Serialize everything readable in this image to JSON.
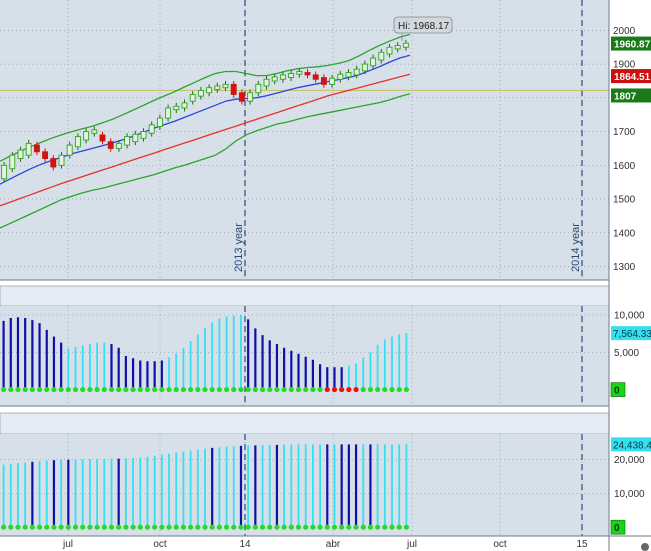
{
  "chart_data": [
    {
      "type": "candlestick",
      "panel": "price",
      "ylim": [
        1260,
        2090
      ],
      "yticks": [
        1300,
        1400,
        1500,
        1600,
        1700,
        1800,
        1900,
        2000
      ],
      "series": [
        {
          "name": "price",
          "kind": "candles",
          "color_up": "#2fa51f",
          "color_down": "#d01414"
        },
        {
          "name": "upper band",
          "kind": "line",
          "color": "#2ba52b",
          "values": [
            1612,
            1628,
            1642,
            1655,
            1668,
            1680,
            1690,
            1700,
            1708,
            1716,
            1726,
            1737,
            1750,
            1764,
            1778,
            1792,
            1805,
            1818,
            1832,
            1846,
            1860,
            1872,
            1878,
            1878,
            1872,
            1866,
            1866,
            1872,
            1880,
            1886,
            1890,
            1892,
            1896,
            1902,
            1910,
            1924,
            1940,
            1955,
            1968,
            1980,
            1988
          ]
        },
        {
          "name": "lower band",
          "kind": "line",
          "color": "#2ba52b",
          "values": [
            1414,
            1428,
            1442,
            1456,
            1470,
            1484,
            1498,
            1508,
            1518,
            1526,
            1532,
            1540,
            1548,
            1556,
            1564,
            1572,
            1582,
            1592,
            1600,
            1610,
            1620,
            1630,
            1648,
            1672,
            1690,
            1702,
            1712,
            1722,
            1728,
            1736,
            1744,
            1750,
            1756,
            1762,
            1768,
            1774,
            1780,
            1786,
            1794,
            1804,
            1812
          ]
        },
        {
          "name": "red ma",
          "kind": "line",
          "color": "#e83030",
          "values": [
            1480,
            1491,
            1502,
            1513,
            1524,
            1535,
            1546,
            1556,
            1566,
            1576,
            1586,
            1596,
            1606,
            1616,
            1626,
            1636,
            1646,
            1656,
            1666,
            1676,
            1686,
            1696,
            1706,
            1716,
            1726,
            1736,
            1746,
            1756,
            1766,
            1776,
            1786,
            1796,
            1806,
            1814,
            1822,
            1830,
            1838,
            1846,
            1854,
            1862,
            1870
          ]
        },
        {
          "name": "blue ma",
          "kind": "line",
          "color": "#2845e0",
          "values": [
            1544,
            1560,
            1575,
            1590,
            1603,
            1614,
            1624,
            1634,
            1642,
            1650,
            1658,
            1667,
            1676,
            1686,
            1698,
            1710,
            1720,
            1730,
            1742,
            1754,
            1766,
            1778,
            1790,
            1796,
            1798,
            1800,
            1806,
            1814,
            1822,
            1830,
            1836,
            1842,
            1848,
            1854,
            1860,
            1868,
            1880,
            1892,
            1906,
            1918,
            1926
          ]
        }
      ],
      "candles": [
        {
          "o": 1560,
          "c": 1600
        },
        {
          "o": 1590,
          "c": 1630
        },
        {
          "o": 1620,
          "c": 1645
        },
        {
          "o": 1630,
          "c": 1665
        },
        {
          "o": 1660,
          "c": 1640
        },
        {
          "o": 1640,
          "c": 1620
        },
        {
          "o": 1620,
          "c": 1595
        },
        {
          "o": 1600,
          "c": 1630
        },
        {
          "o": 1630,
          "c": 1660
        },
        {
          "o": 1655,
          "c": 1685
        },
        {
          "o": 1675,
          "c": 1700
        },
        {
          "o": 1695,
          "c": 1705
        },
        {
          "o": 1690,
          "c": 1672
        },
        {
          "o": 1670,
          "c": 1650
        },
        {
          "o": 1650,
          "c": 1665
        },
        {
          "o": 1660,
          "c": 1685
        },
        {
          "o": 1670,
          "c": 1692
        },
        {
          "o": 1680,
          "c": 1700
        },
        {
          "o": 1695,
          "c": 1720
        },
        {
          "o": 1715,
          "c": 1740
        },
        {
          "o": 1740,
          "c": 1770
        },
        {
          "o": 1765,
          "c": 1775
        },
        {
          "o": 1770,
          "c": 1785
        },
        {
          "o": 1790,
          "c": 1810
        },
        {
          "o": 1805,
          "c": 1822
        },
        {
          "o": 1815,
          "c": 1830
        },
        {
          "o": 1825,
          "c": 1835
        },
        {
          "o": 1830,
          "c": 1840
        },
        {
          "o": 1840,
          "c": 1810
        },
        {
          "o": 1815,
          "c": 1790
        },
        {
          "o": 1790,
          "c": 1815
        },
        {
          "o": 1815,
          "c": 1840
        },
        {
          "o": 1835,
          "c": 1855
        },
        {
          "o": 1850,
          "c": 1862
        },
        {
          "o": 1855,
          "c": 1868
        },
        {
          "o": 1860,
          "c": 1872
        },
        {
          "o": 1870,
          "c": 1878
        },
        {
          "o": 1875,
          "c": 1868
        },
        {
          "o": 1868,
          "c": 1855
        },
        {
          "o": 1860,
          "c": 1840
        },
        {
          "o": 1840,
          "c": 1858
        },
        {
          "o": 1855,
          "c": 1870
        },
        {
          "o": 1862,
          "c": 1875
        },
        {
          "o": 1868,
          "c": 1885
        },
        {
          "o": 1880,
          "c": 1900
        },
        {
          "o": 1895,
          "c": 1918
        },
        {
          "o": 1912,
          "c": 1935
        },
        {
          "o": 1930,
          "c": 1950
        },
        {
          "o": 1945,
          "c": 1955
        },
        {
          "o": 1950,
          "c": 1962
        }
      ],
      "horizontal_line": {
        "value": 1822,
        "color": "#c4c05a"
      },
      "high_marker": {
        "label": "Hi: 1968.17",
        "value": 1968.17
      },
      "price_labels": [
        {
          "text": "1960.87",
          "value": 1960.87,
          "color": "#1a7a1a"
        },
        {
          "text": "1864.51",
          "value": 1864.51,
          "color": "#cc1010"
        },
        {
          "text": "1807",
          "value": 1807,
          "color": "#1a7a1a"
        }
      ],
      "annotations": [
        "2013 year",
        "2014 year"
      ]
    },
    {
      "type": "bar",
      "panel": "indicator-1",
      "ylim": [
        -2200,
        11200
      ],
      "ytick_labels": [
        {
          "value": 10000,
          "text": "10,000"
        },
        {
          "value": 5000,
          "text": "5,000"
        }
      ],
      "current_label": "7,564.33",
      "zero_label": "0",
      "colors": {
        "dark": "#1010a8",
        "light": "#34dff0"
      },
      "values": [
        9200,
        9600,
        9700,
        9600,
        9300,
        8900,
        8000,
        7100,
        6300,
        5500,
        5700,
        5900,
        6100,
        6300,
        6300,
        6100,
        5600,
        4500,
        4200,
        3900,
        3800,
        3800,
        3900,
        4300,
        4800,
        5600,
        6500,
        7400,
        8300,
        9000,
        9500,
        9800,
        9900,
        10000,
        9400,
        8200,
        7300,
        6600,
        6100,
        5600,
        5200,
        4800,
        4400,
        4000,
        3400,
        3000,
        3000,
        3000,
        3200,
        3500,
        4300,
        5000,
        6000,
        6700,
        7100,
        7400,
        7564.33
      ],
      "dark_flags": [
        1,
        1,
        1,
        1,
        1,
        1,
        1,
        1,
        1,
        0,
        0,
        0,
        0,
        0,
        0,
        1,
        1,
        1,
        1,
        1,
        1,
        1,
        1,
        0,
        0,
        0,
        0,
        0,
        0,
        0,
        0,
        0,
        0,
        0,
        1,
        1,
        1,
        1,
        1,
        1,
        1,
        1,
        1,
        1,
        1,
        1,
        1,
        1,
        0,
        0,
        0,
        0,
        0,
        0,
        0,
        0,
        0
      ],
      "dots": {
        "green": "#22dd22",
        "red": "#ee1111",
        "red_from": 45,
        "red_to": 49
      }
    },
    {
      "type": "bar",
      "panel": "indicator-2",
      "ylim": [
        -2600,
        27500
      ],
      "ytick_labels": [
        {
          "value": 20000,
          "text": "20,000"
        },
        {
          "value": 10000,
          "text": "10,000"
        }
      ],
      "current_label": "24,438.4",
      "zero_label": "0",
      "colors": {
        "dark": "#1010a8",
        "light": "#34dff0"
      },
      "values": [
        18500,
        18700,
        18900,
        19100,
        19300,
        19500,
        19700,
        19800,
        19850,
        19900,
        19950,
        20000,
        20050,
        20100,
        20150,
        20200,
        20250,
        20300,
        20450,
        20600,
        20800,
        21100,
        21400,
        21700,
        22000,
        22300,
        22600,
        22900,
        23200,
        23400,
        23600,
        23800,
        23900,
        24000,
        24100,
        24150,
        24200,
        24250,
        24300,
        24350,
        24400,
        24420,
        24440,
        24440,
        24440,
        24440,
        24440,
        24440,
        24440,
        24440,
        24440,
        24440,
        24440,
        24440,
        24440,
        24440,
        24438.4
      ],
      "dark_flags": [
        0,
        0,
        0,
        0,
        1,
        0,
        0,
        1,
        0,
        1,
        0,
        0,
        0,
        0,
        0,
        0,
        1,
        0,
        0,
        0,
        0,
        0,
        0,
        0,
        0,
        0,
        0,
        0,
        0,
        1,
        0,
        0,
        0,
        1,
        0,
        1,
        0,
        0,
        1,
        0,
        0,
        0,
        0,
        0,
        0,
        1,
        0,
        1,
        1,
        1,
        0,
        1,
        0,
        0,
        0,
        0,
        0
      ],
      "dots": {
        "green": "#22dd22"
      }
    }
  ],
  "x_axis": {
    "labels": [
      "jul",
      "oct",
      "14",
      "abr",
      "jul",
      "oct",
      "15"
    ],
    "year_boundaries": [
      "2013 year",
      "2014 year"
    ]
  },
  "colors": {
    "panel_bg": "#d7e0e9",
    "header_bg": "#e4ebf2",
    "grid": "#8a9aaa",
    "divider": "#2b4a7a"
  }
}
